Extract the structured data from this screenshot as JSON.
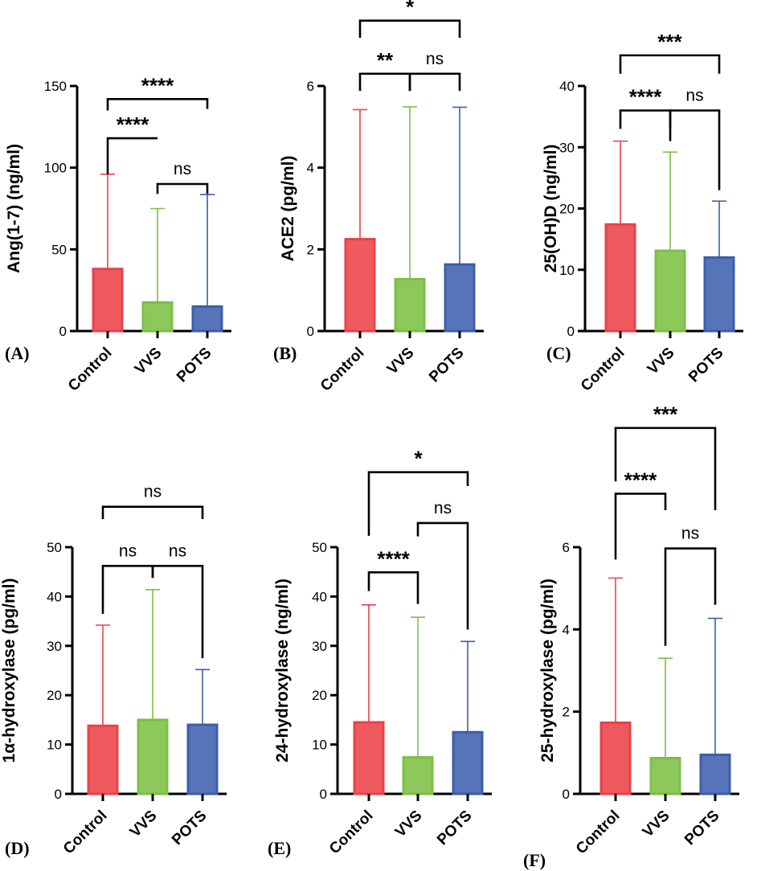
{
  "colors": {
    "control": "#E8424A",
    "control_fill": "#EE5A5E",
    "vvs": "#7BBF47",
    "vvs_fill": "#8CC95A",
    "pots": "#3D5EA8",
    "pots_fill": "#5874B8",
    "axis": "#000000"
  },
  "chart_data": [
    {
      "type": "bar",
      "panel": "(A)",
      "ylabel": "Ang(1-7) (ng/ml)",
      "categories": [
        "Control",
        "VVS",
        "POTS"
      ],
      "values": [
        38,
        17.5,
        15
      ],
      "error_upper": [
        96,
        75,
        83.5
      ],
      "ylim": [
        0,
        150
      ],
      "yticks": [
        0,
        50,
        100,
        150
      ],
      "ytick_labels": [
        "0",
        "50",
        "100",
        "150"
      ],
      "comparisons": [
        {
          "a": 0,
          "b": 1,
          "label": "****",
          "ybar": 118,
          "tips": [
            96,
            118
          ]
        },
        {
          "a": 1,
          "b": 2,
          "label": "ns",
          "ybar": 90,
          "tips": [
            84,
            84
          ]
        },
        {
          "a": 0,
          "b": 2,
          "label": "****",
          "ybar": 142,
          "tips": [
            135,
            136
          ]
        }
      ]
    },
    {
      "type": "bar",
      "panel": "(B)",
      "ylabel": "ACE2 (pg/ml)",
      "categories": [
        "Control",
        "VVS",
        "POTS"
      ],
      "values": [
        2.25,
        1.27,
        1.63
      ],
      "error_upper": [
        5.42,
        5.49,
        5.48
      ],
      "ylim": [
        0,
        6
      ],
      "yticks": [
        0,
        2,
        4,
        6
      ],
      "ytick_labels": [
        "0",
        "2",
        "4",
        "6"
      ],
      "comparisons": [
        {
          "a": 0,
          "b": 1,
          "label": "**",
          "ybar": 6.3,
          "tips": [
            5.88,
            5.88
          ]
        },
        {
          "a": 1,
          "b": 2,
          "label": "ns",
          "ybar": 6.3,
          "tips": [
            5.88,
            5.88
          ]
        },
        {
          "a": 0,
          "b": 2,
          "label": "*",
          "ybar": 7.6,
          "tips": [
            7.18,
            7.18
          ]
        }
      ]
    },
    {
      "type": "bar",
      "panel": "(C)",
      "ylabel": "25(OH)D (ng/ml)",
      "categories": [
        "Control",
        "VVS",
        "POTS"
      ],
      "values": [
        17.4,
        13.1,
        12
      ],
      "error_upper": [
        31,
        29.2,
        21.2
      ],
      "ylim": [
        0,
        40
      ],
      "yticks": [
        0,
        10,
        20,
        30,
        40
      ],
      "ytick_labels": [
        "0",
        "10",
        "20",
        "30",
        "40"
      ],
      "comparisons": [
        {
          "a": 0,
          "b": 1,
          "label": "****",
          "ybar": 36,
          "tips": [
            33,
            33
          ]
        },
        {
          "a": 1,
          "b": 2,
          "label": "ns",
          "ybar": 36,
          "tips": [
            31,
            23
          ]
        },
        {
          "a": 0,
          "b": 2,
          "label": "***",
          "ybar": 45,
          "tips": [
            42,
            42
          ]
        }
      ]
    },
    {
      "type": "bar",
      "panel": "(D)",
      "ylabel": "1α-hydroxylase (pg/ml)",
      "categories": [
        "Control",
        "VVS",
        "POTS"
      ],
      "values": [
        13.8,
        15,
        14
      ],
      "error_upper": [
        34.2,
        41.4,
        25.2
      ],
      "ylim": [
        0,
        50
      ],
      "yticks": [
        0,
        10,
        20,
        30,
        40,
        50
      ],
      "ytick_labels": [
        "0",
        "10",
        "20",
        "30",
        "40",
        "50"
      ],
      "comparisons": [
        {
          "a": 0,
          "b": 1,
          "label": "ns",
          "ybar": 46.2,
          "tips": [
            36.5,
            43.8
          ]
        },
        {
          "a": 1,
          "b": 2,
          "label": "ns",
          "ybar": 46.2,
          "tips": [
            43.8,
            27.5
          ]
        },
        {
          "a": 0,
          "b": 2,
          "label": "ns",
          "ybar": 58.2,
          "tips": [
            55.7,
            55.7
          ]
        }
      ]
    },
    {
      "type": "bar",
      "panel": "(E)",
      "ylabel": "24-hydroxylase (ng/ml)",
      "categories": [
        "Control",
        "VVS",
        "POTS"
      ],
      "values": [
        14.5,
        7.4,
        12.5
      ],
      "error_upper": [
        38.3,
        35.8,
        30.9
      ],
      "ylim": [
        0,
        50
      ],
      "yticks": [
        0,
        10,
        20,
        30,
        40,
        50
      ],
      "ytick_labels": [
        "0",
        "10",
        "20",
        "30",
        "40",
        "50"
      ],
      "comparisons": [
        {
          "a": 0,
          "b": 1,
          "label": "****",
          "ybar": 44.9,
          "tips": [
            41.1,
            38.5
          ]
        },
        {
          "a": 1,
          "b": 2,
          "label": "ns",
          "ybar": 54.9,
          "tips": [
            52.2,
            33.3
          ]
        },
        {
          "a": 0,
          "b": 2,
          "label": "*",
          "ybar": 65.2,
          "tips": [
            52.3,
            62.4
          ]
        }
      ]
    },
    {
      "type": "bar",
      "panel": "(F)",
      "ylabel": "25-hydroxylase (pg/ml)",
      "categories": [
        "Control",
        "VVS",
        "POTS"
      ],
      "values": [
        1.73,
        0.87,
        0.95
      ],
      "error_upper": [
        5.25,
        3.3,
        4.27
      ],
      "ylim": [
        0,
        6
      ],
      "yticks": [
        0,
        2,
        4,
        6
      ],
      "ytick_labels": [
        "0",
        "2",
        "4",
        "6"
      ],
      "comparisons": [
        {
          "a": 0,
          "b": 1,
          "label": "****",
          "ybar": 7.3,
          "tips": [
            5.7,
            6.9
          ]
        },
        {
          "a": 1,
          "b": 2,
          "label": "ns",
          "ybar": 5.97,
          "tips": [
            3.6,
            4.6
          ]
        },
        {
          "a": 0,
          "b": 2,
          "label": "***",
          "ybar": 8.9,
          "tips": [
            7.6,
            6.9
          ]
        }
      ]
    }
  ]
}
